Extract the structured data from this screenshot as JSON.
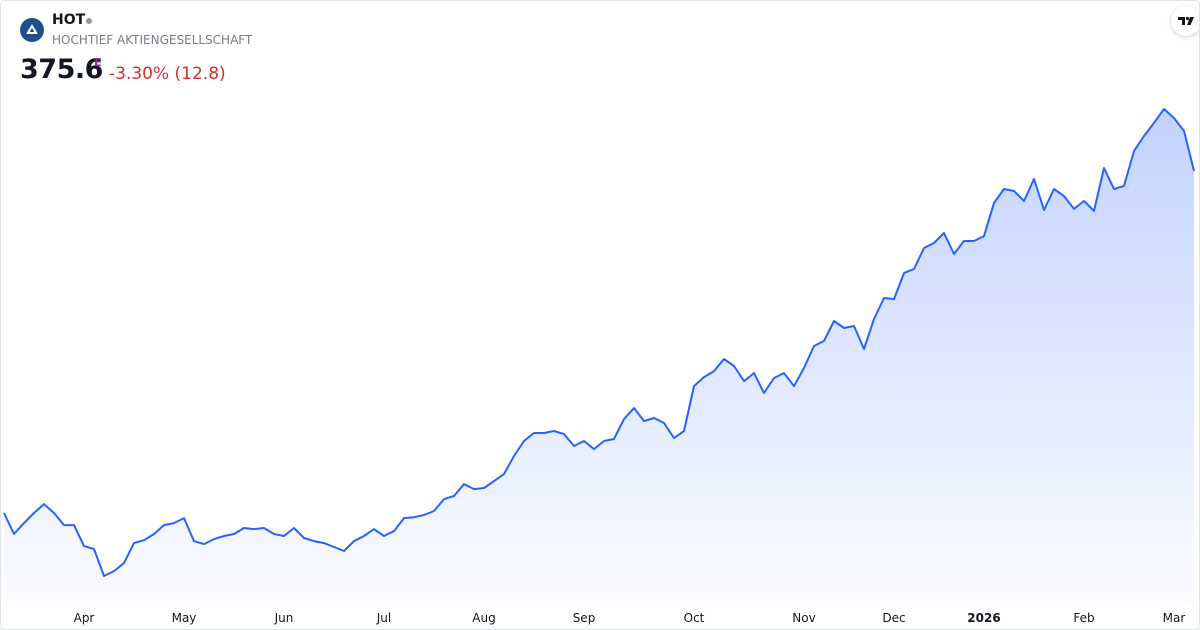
{
  "chart_data": {
    "type": "area",
    "title": "HOT",
    "subtitle": "HOCHTIEF AKTIENGESELLSCHAFT",
    "price": 375.6,
    "price_flag": "E",
    "change": "-3.30% (12.8)",
    "color": "#2962ff",
    "ylim": [
      95,
      431
    ],
    "categories": [
      null,
      null,
      null,
      null,
      null,
      null,
      null,
      null,
      "Apr",
      null,
      null,
      null,
      null,
      null,
      null,
      null,
      null,
      null,
      "May",
      null,
      null,
      null,
      null,
      null,
      null,
      null,
      null,
      null,
      "Jun",
      null,
      null,
      null,
      null,
      null,
      null,
      null,
      null,
      null,
      "Jul",
      null,
      null,
      null,
      null,
      null,
      null,
      null,
      null,
      null,
      "Aug",
      null,
      null,
      null,
      null,
      null,
      null,
      null,
      null,
      null,
      "Sep",
      null,
      null,
      null,
      null,
      null,
      null,
      null,
      null,
      null,
      null,
      "Oct",
      null,
      null,
      null,
      null,
      null,
      null,
      null,
      null,
      null,
      null,
      "Nov",
      null,
      null,
      null,
      null,
      null,
      null,
      null,
      null,
      "Dec",
      null,
      null,
      null,
      null,
      null,
      null,
      null,
      null,
      "2026",
      null,
      null,
      null,
      null,
      null,
      null,
      null,
      null,
      null,
      "Feb",
      null,
      null,
      null,
      null,
      null,
      null,
      null,
      null,
      "Mar",
      null,
      null
    ],
    "values": [
      152.4,
      138.7,
      145.8,
      152.4,
      158.2,
      152.4,
      144.5,
      144.5,
      130.8,
      128.9,
      111.3,
      114.5,
      119.7,
      132.8,
      134.7,
      138.7,
      144.5,
      145.8,
      149.1,
      134.1,
      132.1,
      135.4,
      137.4,
      138.7,
      142.6,
      141.9,
      142.6,
      138.7,
      137.4,
      142.6,
      136.1,
      134.1,
      132.8,
      130.2,
      127.6,
      134.1,
      137.4,
      141.9,
      137.4,
      140.6,
      149.1,
      149.7,
      151.1,
      153.7,
      161.5,
      163.5,
      171.3,
      168.0,
      168.7,
      173.2,
      177.8,
      189.6,
      199.4,
      204.6,
      204.6,
      205.9,
      203.9,
      196.1,
      199.4,
      194.1,
      199.4,
      200.7,
      213.7,
      220.9,
      212.4,
      214.4,
      211.1,
      201.3,
      205.9,
      235.2,
      241.1,
      245.0,
      252.9,
      248.3,
      238.5,
      243.7,
      230.7,
      240.5,
      243.7,
      235.2,
      247.0,
      261.4,
      264.6,
      277.7,
      273.1,
      274.4,
      259.4,
      279.0,
      292.7,
      292.0,
      309.0,
      311.6,
      325.3,
      328.6,
      335.1,
      321.4,
      329.9,
      329.9,
      333.1,
      354.7,
      363.8,
      362.5,
      356.0,
      370.3,
      350.1,
      363.8,
      359.2,
      350.8,
      356.0,
      349.5,
      377.5,
      363.8,
      365.8,
      388.6,
      398.4,
      406.9,
      416.0,
      410.1,
      401.7,
      375.6
    ]
  }
}
